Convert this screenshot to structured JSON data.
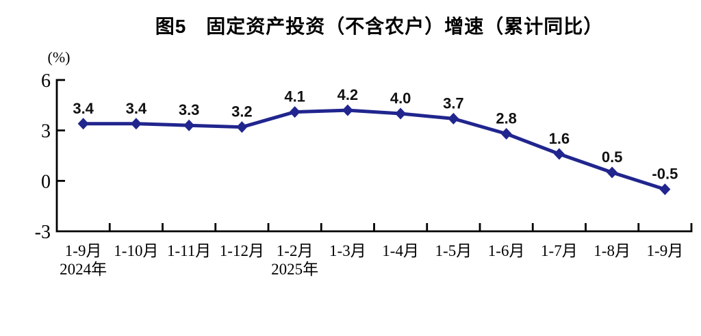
{
  "chart_data": {
    "type": "line",
    "title": "图5　固定资产投资（不含农户）增速（累计同比）",
    "xlabel": "",
    "ylabel": "(%)",
    "categories": [
      "1-9月",
      "1-10月",
      "1-11月",
      "1-12月",
      "1-2月",
      "1-3月",
      "1-4月",
      "1-5月",
      "1-6月",
      "1-7月",
      "1-8月",
      "1-9月"
    ],
    "year_labels": [
      {
        "index": 0,
        "text": "2024年"
      },
      {
        "index": 4,
        "text": "2025年"
      }
    ],
    "series": [
      {
        "name": "固定资产投资（不含农户）增速（累计同比）",
        "values": [
          3.4,
          3.4,
          3.3,
          3.2,
          4.1,
          4.2,
          4.0,
          3.7,
          2.8,
          1.6,
          0.5,
          -0.5
        ]
      }
    ],
    "value_label_decimals": 1,
    "y_ticks": [
      6,
      3,
      0,
      -3
    ],
    "ylim": [
      -3,
      6
    ],
    "grid": false,
    "legend_position": "none",
    "marker": "diamond",
    "colors": {
      "line": "#21258e",
      "marker": "#21258e",
      "axis": "#000000",
      "tick_text": "#000000",
      "value_text": "#111111",
      "title_text": "#000000",
      "background": "#ffffff"
    }
  }
}
